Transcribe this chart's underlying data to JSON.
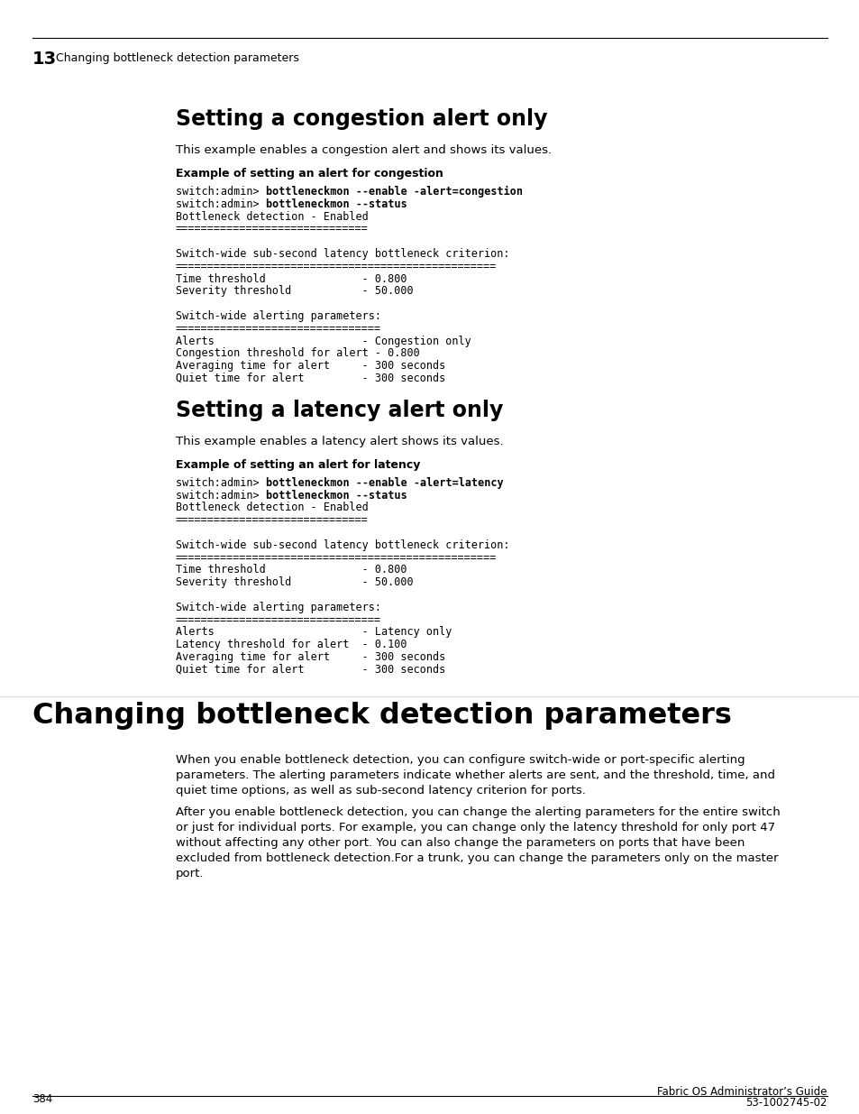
{
  "bg_color": "#ffffff",
  "page_number": "384",
  "footer_right_line1": "Fabric OS Administrator’s Guide",
  "footer_right_line2": "53-1002745-02",
  "header_chapter_num": "13",
  "header_chapter_title": "Changing bottleneck detection parameters",
  "section1_title": "Setting a congestion alert only",
  "section1_desc": "This example enables a congestion alert and shows its values.",
  "section1_example_label": "Example of setting an alert for congestion",
  "section1_code_lines": [
    {
      "parts": [
        {
          "t": "switch:admin> ",
          "b": false
        },
        {
          "t": "bottleneckmon --enable -alert=congestion",
          "b": true
        }
      ]
    },
    {
      "parts": [
        {
          "t": "switch:admin> ",
          "b": false
        },
        {
          "t": "bottleneckmon --status",
          "b": true
        }
      ]
    },
    {
      "parts": [
        {
          "t": "Bottleneck detection - Enabled",
          "b": false
        }
      ]
    },
    {
      "parts": [
        {
          "t": "==============================",
          "b": false
        }
      ]
    },
    {
      "parts": [
        {
          "t": "",
          "b": false
        }
      ]
    },
    {
      "parts": [
        {
          "t": "Switch-wide sub-second latency bottleneck criterion:",
          "b": false
        }
      ]
    },
    {
      "parts": [
        {
          "t": "==================================================",
          "b": false
        }
      ]
    },
    {
      "parts": [
        {
          "t": "Time threshold               - 0.800",
          "b": false
        }
      ]
    },
    {
      "parts": [
        {
          "t": "Severity threshold           - 50.000",
          "b": false
        }
      ]
    },
    {
      "parts": [
        {
          "t": "",
          "b": false
        }
      ]
    },
    {
      "parts": [
        {
          "t": "Switch-wide alerting parameters:",
          "b": false
        }
      ]
    },
    {
      "parts": [
        {
          "t": "================================",
          "b": false
        }
      ]
    },
    {
      "parts": [
        {
          "t": "Alerts                       - Congestion only",
          "b": false
        }
      ]
    },
    {
      "parts": [
        {
          "t": "Congestion threshold for alert - 0.800",
          "b": false
        }
      ]
    },
    {
      "parts": [
        {
          "t": "Averaging time for alert     - 300 seconds",
          "b": false
        }
      ]
    },
    {
      "parts": [
        {
          "t": "Quiet time for alert         - 300 seconds",
          "b": false
        }
      ]
    }
  ],
  "section2_title": "Setting a latency alert only",
  "section2_desc": "This example enables a latency alert shows its values.",
  "section2_example_label": "Example of setting an alert for latency",
  "section2_code_lines": [
    {
      "parts": [
        {
          "t": "switch:admin> ",
          "b": false
        },
        {
          "t": "bottleneckmon --enable -alert=latency",
          "b": true
        }
      ]
    },
    {
      "parts": [
        {
          "t": "switch:admin> ",
          "b": false
        },
        {
          "t": "bottleneckmon --status",
          "b": true
        }
      ]
    },
    {
      "parts": [
        {
          "t": "Bottleneck detection - Enabled",
          "b": false
        }
      ]
    },
    {
      "parts": [
        {
          "t": "==============================",
          "b": false
        }
      ]
    },
    {
      "parts": [
        {
          "t": "",
          "b": false
        }
      ]
    },
    {
      "parts": [
        {
          "t": "Switch-wide sub-second latency bottleneck criterion:",
          "b": false
        }
      ]
    },
    {
      "parts": [
        {
          "t": "==================================================",
          "b": false
        }
      ]
    },
    {
      "parts": [
        {
          "t": "Time threshold               - 0.800",
          "b": false
        }
      ]
    },
    {
      "parts": [
        {
          "t": "Severity threshold           - 50.000",
          "b": false
        }
      ]
    },
    {
      "parts": [
        {
          "t": "",
          "b": false
        }
      ]
    },
    {
      "parts": [
        {
          "t": "Switch-wide alerting parameters:",
          "b": false
        }
      ]
    },
    {
      "parts": [
        {
          "t": "================================",
          "b": false
        }
      ]
    },
    {
      "parts": [
        {
          "t": "Alerts                       - Latency only",
          "b": false
        }
      ]
    },
    {
      "parts": [
        {
          "t": "Latency threshold for alert  - 0.100",
          "b": false
        }
      ]
    },
    {
      "parts": [
        {
          "t": "Averaging time for alert     - 300 seconds",
          "b": false
        }
      ]
    },
    {
      "parts": [
        {
          "t": "Quiet time for alert         - 300 seconds",
          "b": false
        }
      ]
    }
  ],
  "section3_title": "Changing bottleneck detection parameters",
  "section3_para1": "When you enable bottleneck detection, you can configure switch-wide or port-specific alerting\nparameters. The alerting parameters indicate whether alerts are sent, and the threshold, time, and\nquiet time options, as well as sub-second latency criterion for ports.",
  "section3_para2": "After you enable bottleneck detection, you can change the alerting parameters for the entire switch\nor just for individual ports. For example, you can change only the latency threshold for only port 47\nwithout affecting any other port. You can also change the parameters on ports that have been\nexcluded from bottleneck detection.For a trunk, you can change the parameters only on the master\nport."
}
